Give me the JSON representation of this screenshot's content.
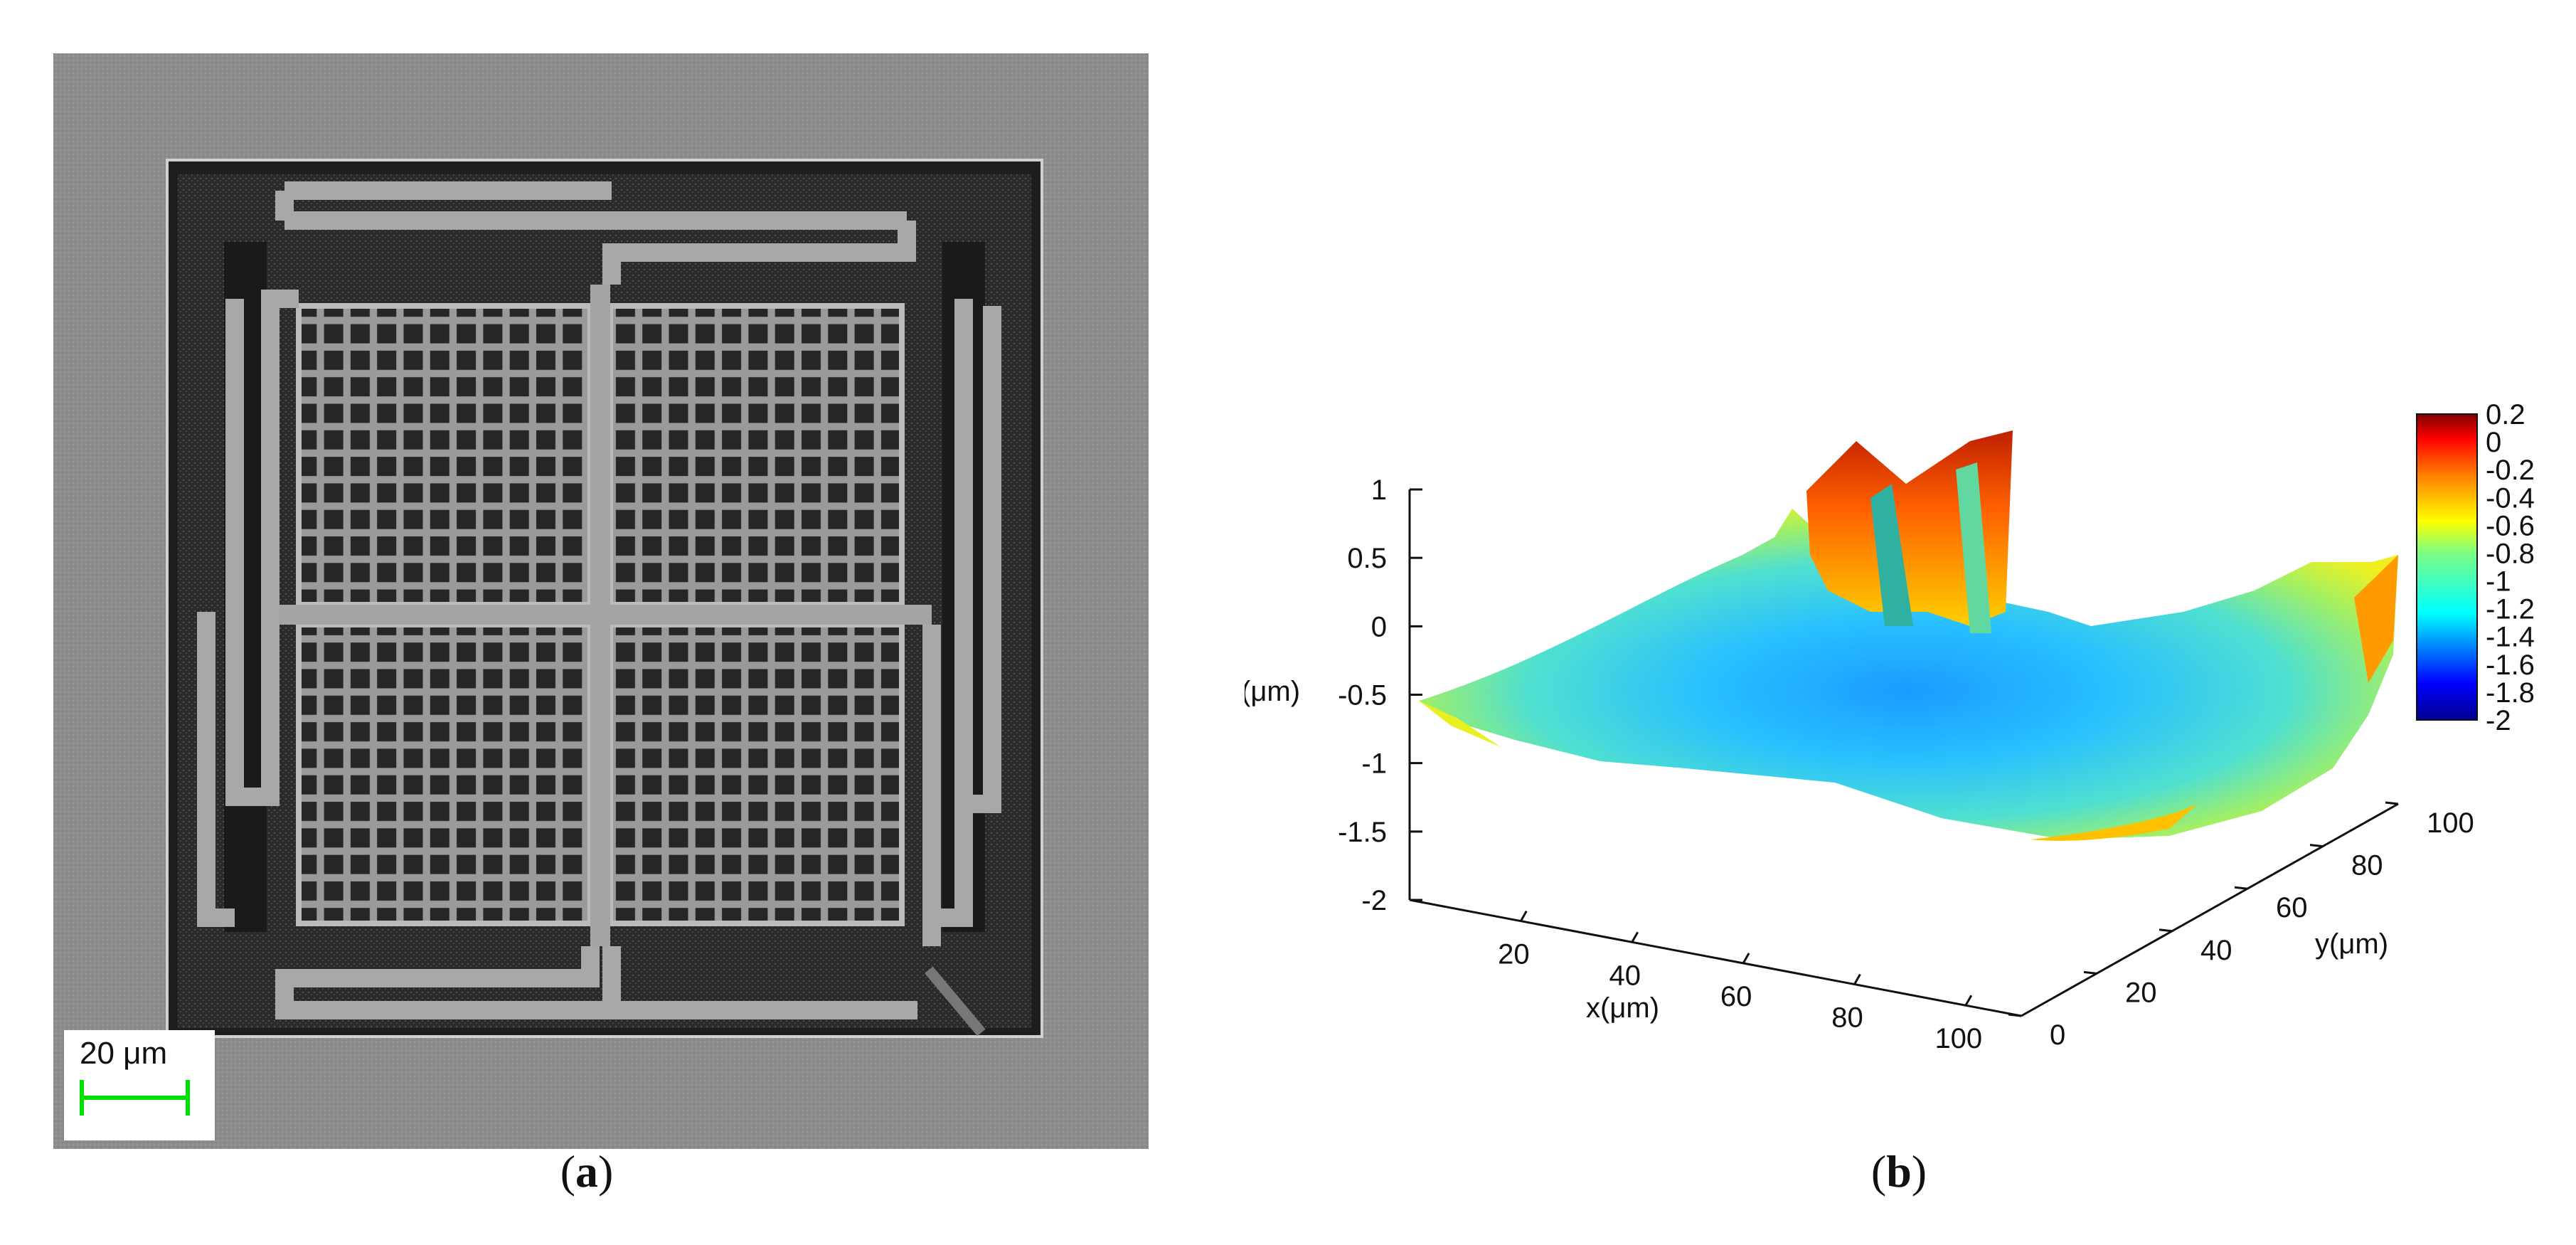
{
  "panel_a": {
    "caption": "a",
    "scale_bar_label": "20 μm"
  },
  "panel_b": {
    "caption": "b",
    "chart_data": {
      "type": "surface",
      "xlabel": "x(μm)",
      "ylabel": "y(μm)",
      "zlabel": "z(μm)",
      "x_ticks": [
        "20",
        "40",
        "60",
        "80",
        "100"
      ],
      "y_ticks": [
        "0",
        "20",
        "40",
        "60",
        "80",
        "100"
      ],
      "z_ticks": [
        "1",
        "0.5",
        "0",
        "-0.5",
        "-1",
        "-1.5",
        "-2"
      ],
      "colorbar_ticks": [
        "0.2",
        "0",
        "-0.2",
        "-0.4",
        "-0.6",
        "-0.8",
        "-1",
        "-1.2",
        "-1.4",
        "-1.6",
        "-1.8",
        "-2"
      ],
      "xlim": [
        0,
        110
      ],
      "ylim": [
        0,
        100
      ],
      "zlim": [
        -2,
        1
      ],
      "colorbar_range": [
        -2,
        0.2
      ],
      "colormap": "jet",
      "surface_minimum_z": -1.6,
      "surface_edge_z": -0.5,
      "peak_z": 0.2
    },
    "colors": {
      "low": "#00008f",
      "mid": "#40ffc0",
      "high": "#800000"
    }
  }
}
